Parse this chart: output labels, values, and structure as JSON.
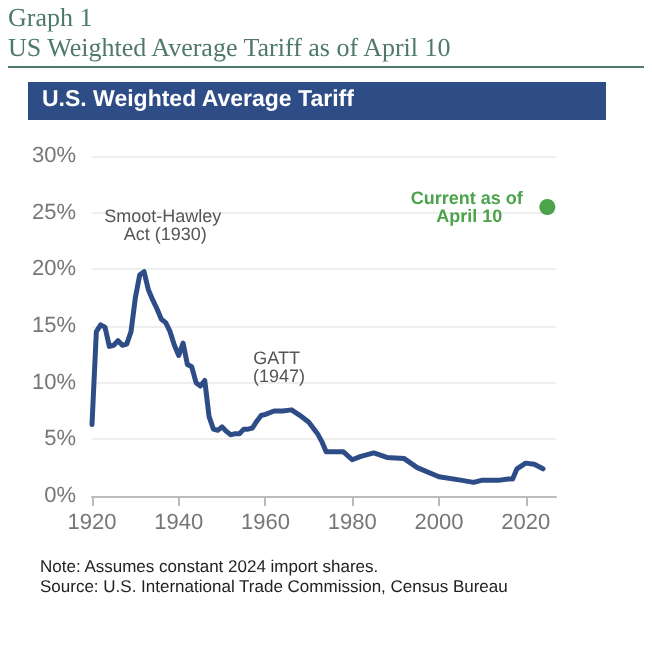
{
  "chart_data": {
    "type": "line",
    "title": "US Weighted Average Tariff as of April 10",
    "subtitle": "U.S. Weighted Average Tariff",
    "xlim": [
      1920,
      2027
    ],
    "xticks": [
      1920,
      1940,
      1960,
      1980,
      2000,
      2020
    ],
    "ylim": [
      0,
      30
    ],
    "yticks": [
      {
        "value": 0,
        "label": "0%"
      },
      {
        "value": 5,
        "label": "5%"
      },
      {
        "value": 10,
        "label": "10%"
      },
      {
        "value": 15,
        "label": "15%"
      },
      {
        "value": 20,
        "label": "20%"
      },
      {
        "value": 25,
        "label": "25%"
      },
      {
        "value": 30,
        "label": "30%"
      }
    ],
    "grid": "y",
    "series": [
      {
        "color": "#2e4d87",
        "marker": "none",
        "x": [
          1920,
          1921,
          1922,
          1923,
          1924,
          1925,
          1926,
          1927,
          1928,
          1929,
          1930,
          1931,
          1932,
          1933,
          1934,
          1935,
          1936,
          1937,
          1938,
          1939,
          1940,
          1941,
          1942,
          1943,
          1944,
          1945,
          1946,
          1947,
          1948,
          1949,
          1950,
          1951,
          1952,
          1953,
          1954,
          1955,
          1956,
          1957,
          1958,
          1959,
          1960,
          1962,
          1964,
          1966,
          1968,
          1970,
          1972,
          1973,
          1974,
          1976,
          1978,
          1980,
          1982,
          1985,
          1988,
          1992,
          1995,
          2000,
          2005,
          2008,
          2010,
          2014,
          2016,
          2017,
          2018,
          2020,
          2022,
          2024
        ],
        "values": [
          6.3,
          14.5,
          15.1,
          14.9,
          13.2,
          13.3,
          13.7,
          13.3,
          13.4,
          14.5,
          17.5,
          19.5,
          19.8,
          18.2,
          17.3,
          16.5,
          15.6,
          15.3,
          14.5,
          13.3,
          12.4,
          13.5,
          11.6,
          11.4,
          10.0,
          9.7,
          10.2,
          7.0,
          5.9,
          5.8,
          6.1,
          5.7,
          5.4,
          5.5,
          5.5,
          5.9,
          5.9,
          6.0,
          6.6,
          7.1,
          7.2,
          7.5,
          7.5,
          7.6,
          7.1,
          6.5,
          5.5,
          4.8,
          3.9,
          3.9,
          3.9,
          3.2,
          3.5,
          3.8,
          3.4,
          3.3,
          2.5,
          1.7,
          1.4,
          1.2,
          1.4,
          1.4,
          1.5,
          1.5,
          2.4,
          2.9,
          2.8,
          2.4
        ]
      },
      {
        "type": "scatter",
        "name": "Current as of April 10",
        "color": "#1e8c1e",
        "marker": "circle",
        "x": [
          2025
        ],
        "values": [
          25.5
        ]
      }
    ],
    "annotations": [
      "Graph 1",
      "Smoot-Hawley Act (1930)",
      "GATT (1947)",
      "Note: Assumes constant 2024 import shares.",
      "Source: U.S. International Trade Commission, Census Bureau"
    ]
  }
}
